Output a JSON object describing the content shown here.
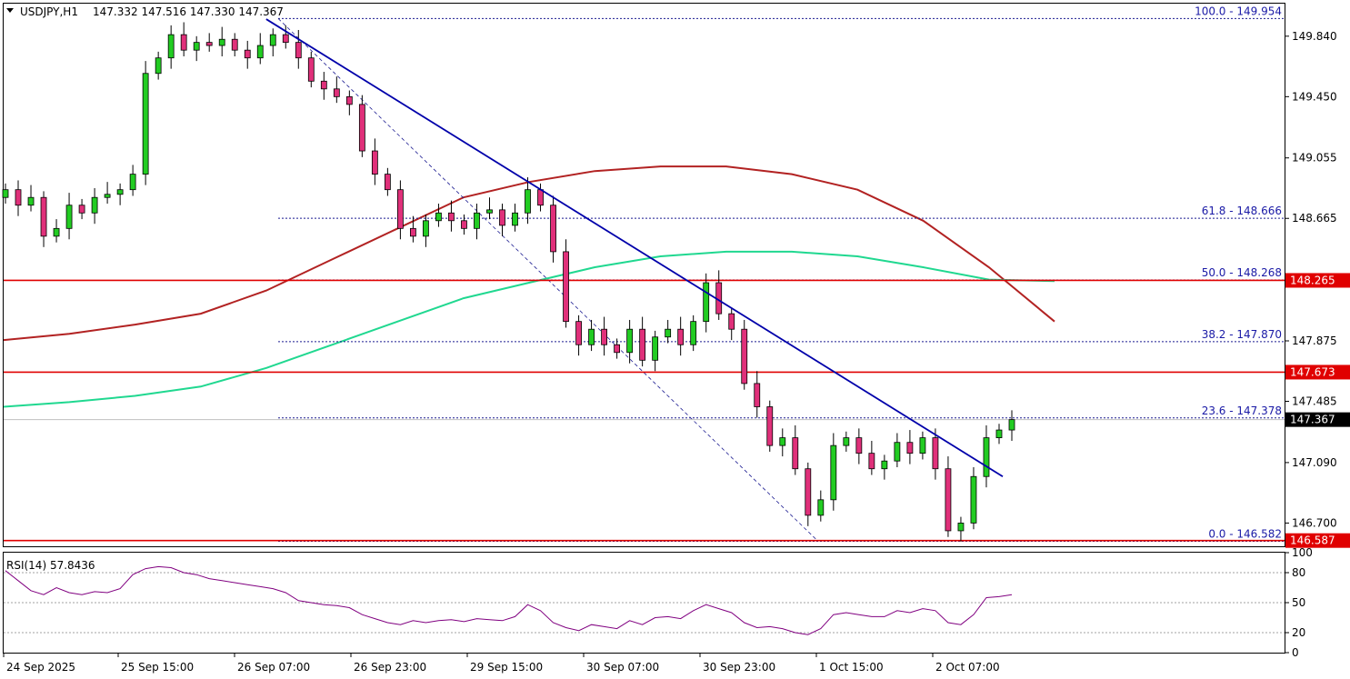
{
  "header": {
    "symbol": "USDJPY,H1",
    "ohlc": "147.332 147.516 147.330 147.367",
    "menu_icon": "triangle-down-icon"
  },
  "rsi_label": "RSI(14) 57.8436",
  "chart_data": [
    {
      "type": "candlestick",
      "symbol": "USDJPY",
      "timeframe": "H1",
      "ylim": [
        146.55,
        150.05
      ],
      "y_ticks": [
        "149.840",
        "149.450",
        "149.055",
        "148.665",
        "147.875",
        "147.485",
        "147.090",
        "146.700"
      ],
      "x_ticks": [
        "24 Sep 2025",
        "25 Sep 15:00",
        "26 Sep 07:00",
        "26 Sep 23:00",
        "29 Sep 15:00",
        "30 Sep 07:00",
        "30 Sep 23:00",
        "1 Oct 15:00",
        "2 Oct 07:00"
      ],
      "close_path": [
        148.85,
        148.75,
        148.8,
        148.55,
        148.6,
        148.75,
        148.7,
        148.8,
        148.82,
        148.85,
        148.95,
        149.6,
        149.7,
        149.85,
        149.75,
        149.8,
        149.78,
        149.82,
        149.75,
        149.7,
        149.78,
        149.85,
        149.8,
        149.7,
        149.55,
        149.5,
        149.45,
        149.4,
        149.1,
        148.95,
        148.85,
        148.6,
        148.55,
        148.65,
        148.7,
        148.65,
        148.6,
        148.7,
        148.72,
        148.62,
        148.7,
        148.85,
        148.75,
        148.45,
        148.0,
        147.85,
        147.95,
        147.85,
        147.8,
        147.95,
        147.75,
        147.9,
        147.95,
        147.85,
        148.0,
        148.25,
        148.05,
        147.95,
        147.6,
        147.45,
        147.2,
        147.25,
        147.05,
        146.75,
        146.85,
        147.2,
        147.25,
        147.15,
        147.05,
        147.1,
        147.22,
        147.15,
        147.25,
        147.05,
        146.65,
        146.7,
        147.0,
        147.25,
        147.3,
        147.367
      ],
      "current_price": "147.367",
      "horizontal_levels": [
        {
          "value": 148.265,
          "label": "148.265"
        },
        {
          "value": 147.673,
          "label": "147.673"
        },
        {
          "value": 146.587,
          "label": "146.587"
        }
      ],
      "fibonacci": [
        {
          "value": 149.954,
          "label": "100.0 - 149.954"
        },
        {
          "value": 148.666,
          "label": "61.8 - 148.666"
        },
        {
          "value": 148.268,
          "label": "50.0 - 148.268"
        },
        {
          "value": 147.87,
          "label": "38.2 - 147.870"
        },
        {
          "value": 147.378,
          "label": "23.6 - 147.378"
        },
        {
          "value": 146.582,
          "label": "0.0 - 146.582"
        }
      ],
      "trend_line": {
        "from": [
          0.205,
          149.95
        ],
        "to": [
          0.78,
          147.0
        ]
      },
      "moving_averages": [
        {
          "color": "#b22222",
          "path": [
            147.88,
            147.92,
            147.98,
            148.05,
            148.2,
            148.4,
            148.6,
            148.8,
            148.9,
            148.97,
            149.0,
            149.0,
            148.95,
            148.85,
            148.65,
            148.35,
            148.0
          ]
        },
        {
          "color": "#20d890",
          "path": [
            147.45,
            147.48,
            147.52,
            147.58,
            147.7,
            147.85,
            148.0,
            148.15,
            148.25,
            148.35,
            148.42,
            148.45,
            148.45,
            148.42,
            148.35,
            148.27,
            148.26
          ]
        }
      ],
      "colors": {
        "up": "#22cc22",
        "down": "#e0307a",
        "levels": "#e00000",
        "trend": "#0000aa",
        "fib": "#1a1a90"
      }
    },
    {
      "type": "line",
      "name": "RSI(14)",
      "value": "57.8436",
      "ylim": [
        0,
        100
      ],
      "y_ticks": [
        "100",
        "80",
        "50",
        "20",
        "0"
      ],
      "values": [
        82,
        72,
        62,
        58,
        65,
        60,
        58,
        61,
        60,
        64,
        78,
        84,
        86,
        85,
        80,
        78,
        74,
        72,
        70,
        68,
        66,
        64,
        60,
        52,
        50,
        48,
        47,
        45,
        38,
        34,
        30,
        28,
        32,
        30,
        32,
        33,
        31,
        34,
        33,
        32,
        36,
        48,
        42,
        30,
        25,
        22,
        28,
        26,
        24,
        32,
        28,
        35,
        36,
        34,
        42,
        48,
        44,
        40,
        30,
        25,
        26,
        24,
        20,
        18,
        24,
        38,
        40,
        38,
        36,
        36,
        42,
        40,
        44,
        42,
        30,
        28,
        38,
        55,
        56,
        58
      ],
      "color": "#800080"
    }
  ]
}
